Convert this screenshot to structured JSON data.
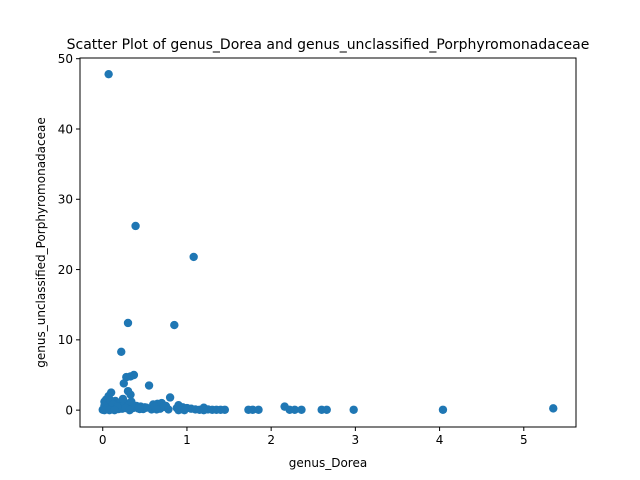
{
  "chart_data": {
    "type": "scatter",
    "title": "Scatter Plot of genus_Dorea and genus_unclassified_Porphyromonadaceae",
    "xlabel": "genus_Dorea",
    "ylabel": "genus_unclassified_Porphyromonadaceae",
    "xlim": [
      -0.27,
      5.62
    ],
    "ylim": [
      -2.4,
      50.1
    ],
    "xticks": [
      0,
      1,
      2,
      3,
      4,
      5
    ],
    "yticks": [
      0,
      10,
      20,
      30,
      40,
      50
    ],
    "grid": false,
    "legend": "none",
    "marker_color": "#1f77b4",
    "series": [
      {
        "x": [
          0.07,
          0.39,
          1.08,
          0.3,
          0.85,
          0.22,
          0.37,
          0.33,
          0.28,
          0.25,
          0.55,
          0.8,
          0.3,
          0.33,
          0.1,
          0.07,
          0.04,
          0.02,
          0.05,
          0.15,
          0.2,
          0.35,
          0.4,
          0.45,
          0.5,
          0.6,
          0.65,
          0.7,
          0.75,
          0.9,
          0.95,
          1.0,
          1.05,
          1.1,
          1.15,
          1.2,
          1.25,
          1.3,
          1.35,
          1.4,
          1.45,
          1.73,
          1.78,
          1.85,
          2.16,
          2.22,
          2.28,
          2.36,
          2.6,
          2.66,
          2.98,
          4.04,
          5.35,
          0.0,
          0.01,
          0.03,
          0.06,
          0.08,
          0.11,
          0.12,
          0.13,
          0.14,
          0.16,
          0.18,
          0.19,
          0.21,
          0.23,
          0.26,
          0.29,
          0.31,
          0.36,
          0.42,
          0.48,
          0.52,
          0.58,
          0.62,
          0.68,
          0.72,
          0.78,
          0.88,
          0.02,
          0.05,
          0.09,
          0.12,
          0.17,
          0.24,
          0.27,
          0.34,
          0.44,
          0.64,
          0.02,
          0.08,
          0.14,
          0.32,
          0.9,
          0.97,
          1.2
        ],
        "y": [
          47.8,
          26.2,
          21.8,
          12.4,
          12.1,
          8.3,
          5.0,
          4.8,
          4.7,
          3.8,
          3.5,
          1.8,
          2.7,
          2.2,
          2.5,
          2.0,
          1.5,
          1.2,
          1.0,
          1.3,
          1.0,
          0.8,
          0.6,
          0.5,
          0.4,
          0.8,
          0.9,
          1.0,
          0.6,
          0.7,
          0.4,
          0.3,
          0.2,
          0.1,
          0.05,
          0.35,
          0.1,
          0.05,
          0.05,
          0.05,
          0.05,
          0.05,
          0.05,
          0.05,
          0.5,
          0.05,
          0.05,
          0.05,
          0.05,
          0.05,
          0.05,
          0.05,
          0.25,
          0.05,
          0.1,
          0.3,
          0.5,
          0.7,
          0.2,
          0.9,
          0.4,
          0.1,
          0.6,
          0.3,
          0.15,
          0.5,
          0.2,
          1.1,
          0.4,
          0.7,
          0.3,
          0.25,
          0.15,
          0.35,
          0.1,
          0.5,
          0.2,
          0.45,
          0.1,
          0.3,
          0.6,
          0.2,
          1.4,
          0.8,
          0.45,
          1.6,
          0.3,
          1.2,
          0.15,
          0.1,
          0.0,
          0.0,
          0.0,
          0.0,
          0.0,
          0.0,
          0.0
        ]
      }
    ]
  }
}
